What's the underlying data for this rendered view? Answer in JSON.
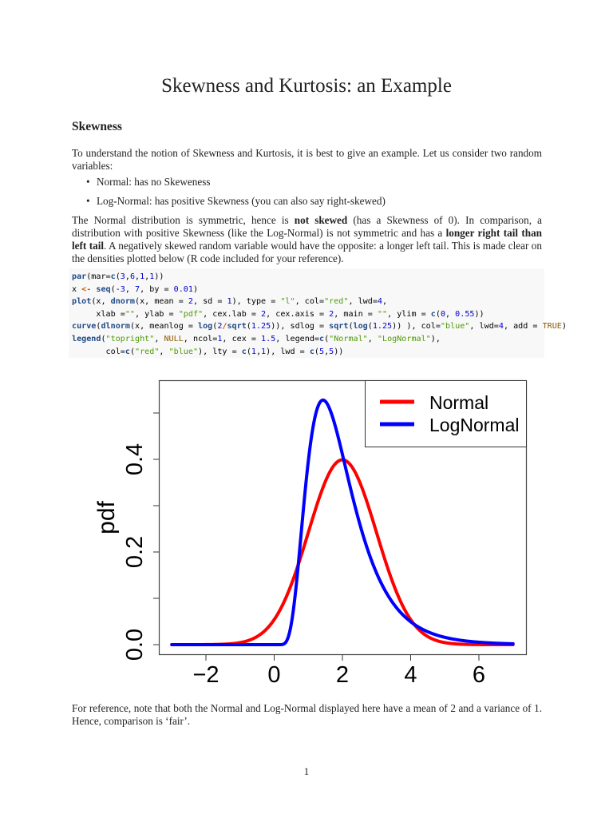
{
  "document": {
    "title": "Skewness and Kurtosis: an Example",
    "section_heading": "Skewness",
    "intro_paragraph": "To understand the notion of Skewness and Kurtosis, it is best to give an example. Let us consider two random variables:",
    "bullets": [
      "Normal: has no Skeweness",
      "Log-Normal: has positive Skewness (you can also say right-skewed)"
    ],
    "explanation": {
      "part1": "The Normal distribution is symmetric, hence is ",
      "bold1": "not skewed",
      "part2": " (has a Skewness of 0). In comparison, a distribution with positive Skewness (like the Log-Normal) is not symmetric and has a ",
      "bold2": "longer right tail than left tail",
      "part3": ". A negatively skewed random variable would have the opposite: a longer left tail. This is made clear on the densities plotted below (R code included for your reference)."
    },
    "code_lines": [
      "par(mar=c(3,6,1,1))",
      "x <- seq(-3, 7, by = 0.01)",
      "plot(x, dnorm(x, mean = 2, sd = 1), type = \"l\", col=\"red\", lwd=4,",
      "     xlab =\"\", ylab = \"pdf\", cex.lab = 2, cex.axis = 2, main = \"\", ylim = c(0, 0.55))",
      "curve(dlnorm(x, meanlog = log(2/sqrt(1.25)), sdlog = sqrt(log(1.25)) ), col=\"blue\", lwd=4, add = TRUE)",
      "legend(\"topright\", NULL, ncol=1, cex = 1.5, legend=c(\"Normal\", \"LogNormal\"),",
      "       col=c(\"red\", \"blue\"), lty = c(1,1), lwd = c(5,5))"
    ],
    "footnote": "For reference, note that both the Normal and Log-Normal displayed here have a mean of 2 and a variance of 1. Hence, comparison is ‘fair’.",
    "page_number": "1"
  },
  "chart_data": {
    "type": "line",
    "title": "",
    "xlabel": "",
    "ylabel": "pdf",
    "xlim": [
      -3,
      7
    ],
    "ylim": [
      0,
      0.55
    ],
    "x_ticks": [
      "−2",
      "0",
      "2",
      "4",
      "6"
    ],
    "x_tick_values": [
      -2,
      0,
      2,
      4,
      6
    ],
    "y_ticks": [
      "0.0",
      "0.2",
      "0.4"
    ],
    "y_tick_values": [
      0.0,
      0.1,
      0.2,
      0.3,
      0.4,
      0.5
    ],
    "y_labeled_values": [
      0.0,
      0.2,
      0.4
    ],
    "grid": false,
    "legend_position": "topright",
    "x": [
      -3,
      -2,
      -1,
      0,
      0.25,
      0.5,
      0.75,
      1,
      1.25,
      1.43,
      1.75,
      2,
      2.5,
      3,
      3.5,
      4,
      5,
      6,
      7
    ],
    "series": [
      {
        "name": "Normal",
        "color": "#ff0000",
        "distribution": "dnorm(mean=2, sd=1)",
        "values": [
          0.0,
          0.0001,
          0.0044,
          0.054,
          0.0863,
          0.1295,
          0.1826,
          0.242,
          0.3011,
          0.3393,
          0.3867,
          0.3989,
          0.3521,
          0.242,
          0.1295,
          0.054,
          0.0044,
          0.0001,
          0.0
        ]
      },
      {
        "name": "LogNormal",
        "color": "#0000ff",
        "distribution": "dlnorm(meanlog=log(2/sqrt(1.25)), sdlog=sqrt(log(1.25)))",
        "values": [
          0.0,
          0.0,
          0.0,
          0.0,
          0.0,
          0.0024,
          0.0793,
          0.2934,
          0.4694,
          0.528,
          0.4908,
          0.4306,
          0.2908,
          0.1773,
          0.1017,
          0.056,
          0.0159,
          0.0045,
          0.0013
        ]
      }
    ],
    "legend": [
      "Normal",
      "LogNormal"
    ]
  }
}
